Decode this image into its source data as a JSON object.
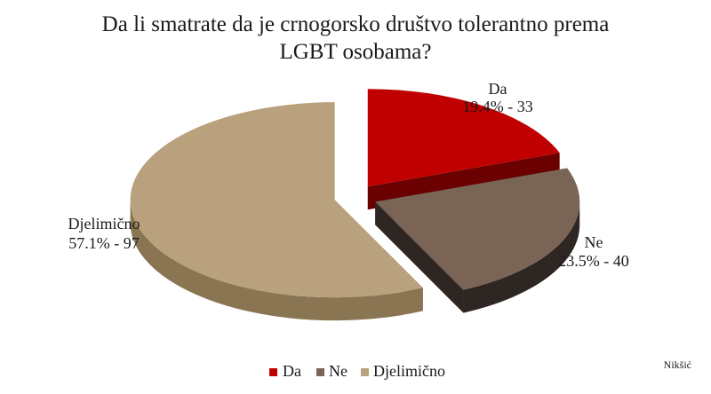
{
  "chart_data": {
    "type": "pie",
    "title_lines": [
      "Da li smatrate da je crnogorsko društvo tolerantno prema",
      "LGBT osobama?"
    ],
    "slices": [
      {
        "name": "Da",
        "percent": 19.4,
        "count": 33,
        "label": "19.4% - 33",
        "color": "#c00000",
        "side": "#6a0000"
      },
      {
        "name": "Ne",
        "percent": 23.5,
        "count": 40,
        "label": "23.5% - 40",
        "color": "#7a6456",
        "side": "#2e2622"
      },
      {
        "name": "Djelimično",
        "percent": 57.1,
        "count": 97,
        "label": "57.1% - 97",
        "color": "#b8a17c",
        "side": "#8a7552"
      }
    ],
    "legend": {
      "placement": "bottom",
      "items": [
        "Da",
        "Ne",
        "Djelimično"
      ]
    },
    "exploded": true,
    "three_d": true
  },
  "footnote": "Nikšić"
}
